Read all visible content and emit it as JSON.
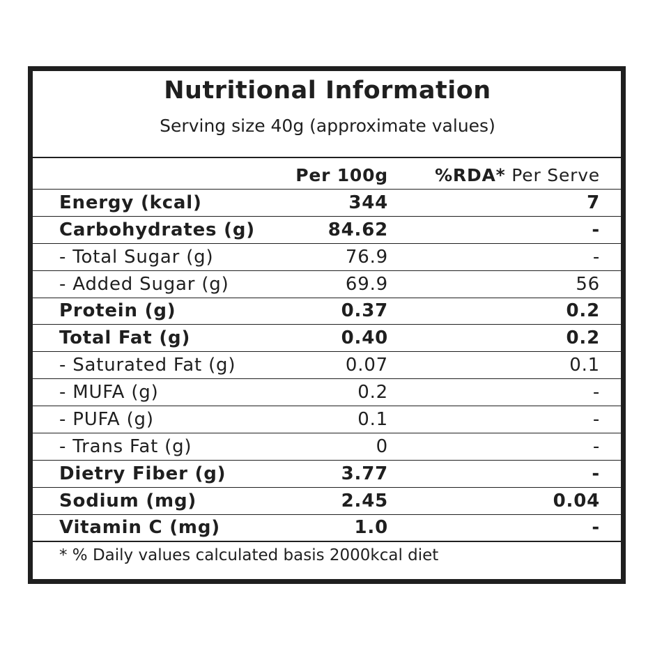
{
  "title": "Nutritional Information",
  "subtitle": "Serving size 40g  (approximate values)",
  "header": {
    "per100g": "Per 100g",
    "rda_bold": "%RDA*",
    "rda_rest": " Per Serve"
  },
  "rows": [
    {
      "name": "Energy (kcal)",
      "per100g": "344",
      "rda": "7",
      "bold": true
    },
    {
      "name": "Carbohydrates (g)",
      "per100g": "84.62",
      "rda": "-",
      "bold": true
    },
    {
      "name": "- Total Sugar (g)",
      "per100g": "76.9",
      "rda": "-",
      "bold": false
    },
    {
      "name": "- Added Sugar (g)",
      "per100g": "69.9",
      "rda": "56",
      "bold": false
    },
    {
      "name": "Protein (g)",
      "per100g": "0.37",
      "rda": "0.2",
      "bold": true
    },
    {
      "name": "Total Fat (g)",
      "per100g": "0.40",
      "rda": "0.2",
      "bold": true
    },
    {
      "name": "- Saturated Fat (g)",
      "per100g": "0.07",
      "rda": "0.1",
      "bold": false
    },
    {
      "name": "- MUFA (g)",
      "per100g": "0.2",
      "rda": "-",
      "bold": false
    },
    {
      "name": "- PUFA (g)",
      "per100g": "0.1",
      "rda": "-",
      "bold": false
    },
    {
      "name": "- Trans Fat (g)",
      "per100g": "0",
      "rda": "-",
      "bold": false
    },
    {
      "name": "Dietry Fiber (g)",
      "per100g": "3.77",
      "rda": "-",
      "bold": true
    },
    {
      "name": "Sodium (mg)",
      "per100g": "2.45",
      "rda": "0.04",
      "bold": true
    },
    {
      "name": "Vitamin C (mg)",
      "per100g": "1.0",
      "rda": "-",
      "bold": true
    }
  ],
  "footnote": "* % Daily values calculated basis 2000kcal diet"
}
